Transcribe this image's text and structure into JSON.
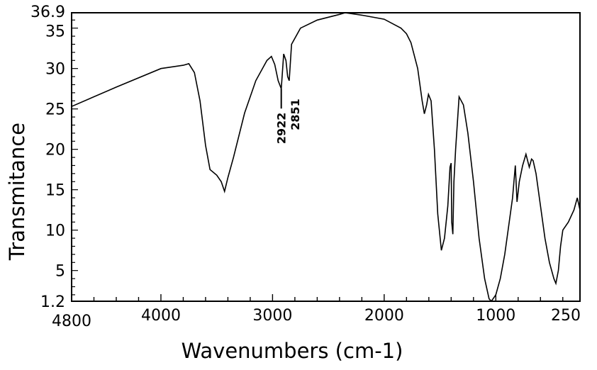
{
  "chart_data": {
    "type": "line",
    "title": "",
    "xlabel": "Wavenumbers (cm-1)",
    "ylabel": "Transmitance",
    "xlim": [
      4800,
      246
    ],
    "ylim": [
      1.2,
      36.9
    ],
    "x_reversed": true,
    "grid": false,
    "x_ticks": [
      4800,
      4000,
      3000,
      2000,
      1000,
      250
    ],
    "x_tick_labels": [
      "4800",
      "4000",
      "3000",
      "2000",
      "1000",
      "250"
    ],
    "y_ticks": [
      1.2,
      5,
      10,
      15,
      20,
      25,
      30,
      35,
      36.9
    ],
    "y_tick_labels": [
      "1.2",
      "5",
      "10",
      "15",
      "20",
      "25",
      "30",
      "35",
      "36.9"
    ],
    "line_color": "#000000",
    "annotations": [
      {
        "text": "2922",
        "x": 2922,
        "y": 27.5
      },
      {
        "text": "2851",
        "x": 2851,
        "y": 28.5
      }
    ],
    "series": [
      {
        "points": [
          [
            4800,
            25.3
          ],
          [
            4400,
            27.7
          ],
          [
            4000,
            30
          ],
          [
            3800,
            30.4
          ],
          [
            3750,
            30.6
          ],
          [
            3700,
            29.5
          ],
          [
            3650,
            26
          ],
          [
            3600,
            20.5
          ],
          [
            3560,
            17.5
          ],
          [
            3500,
            16.8
          ],
          [
            3460,
            16
          ],
          [
            3430,
            14.8
          ],
          [
            3400,
            16.5
          ],
          [
            3350,
            19
          ],
          [
            3250,
            24.5
          ],
          [
            3150,
            28.5
          ],
          [
            3050,
            31
          ],
          [
            3010,
            31.5
          ],
          [
            2980,
            30.5
          ],
          [
            2950,
            28.5
          ],
          [
            2922,
            27.5
          ],
          [
            2900,
            31.8
          ],
          [
            2880,
            31
          ],
          [
            2865,
            29
          ],
          [
            2851,
            28.5
          ],
          [
            2830,
            33
          ],
          [
            2750,
            35
          ],
          [
            2600,
            36
          ],
          [
            2400,
            36.7
          ],
          [
            2350,
            36.9
          ],
          [
            2200,
            36.6
          ],
          [
            2000,
            36.1
          ],
          [
            1850,
            35
          ],
          [
            1800,
            34.3
          ],
          [
            1760,
            33.2
          ],
          [
            1700,
            30
          ],
          [
            1660,
            26
          ],
          [
            1640,
            24.4
          ],
          [
            1620,
            25.5
          ],
          [
            1603,
            26.8
          ],
          [
            1580,
            26
          ],
          [
            1550,
            20
          ],
          [
            1520,
            12
          ],
          [
            1488,
            7.5
          ],
          [
            1460,
            9
          ],
          [
            1430,
            13
          ],
          [
            1410,
            17.8
          ],
          [
            1400,
            18.3
          ],
          [
            1395,
            11
          ],
          [
            1385,
            9.5
          ],
          [
            1375,
            16
          ],
          [
            1360,
            20
          ],
          [
            1329,
            26.5
          ],
          [
            1290,
            25.5
          ],
          [
            1250,
            22
          ],
          [
            1200,
            16
          ],
          [
            1150,
            9
          ],
          [
            1100,
            4
          ],
          [
            1060,
            1.5
          ],
          [
            1040,
            1.2
          ],
          [
            1000,
            2
          ],
          [
            960,
            4
          ],
          [
            920,
            7
          ],
          [
            880,
            11
          ],
          [
            850,
            14
          ],
          [
            825,
            18
          ],
          [
            810,
            13.5
          ],
          [
            790,
            16
          ],
          [
            760,
            18
          ],
          [
            730,
            19.4
          ],
          [
            700,
            17.8
          ],
          [
            680,
            18.8
          ],
          [
            666,
            18.6
          ],
          [
            640,
            17
          ],
          [
            600,
            13
          ],
          [
            560,
            9
          ],
          [
            520,
            6
          ],
          [
            480,
            4
          ],
          [
            462,
            3.4
          ],
          [
            440,
            5
          ],
          [
            420,
            8
          ],
          [
            400,
            10
          ],
          [
            350,
            11
          ],
          [
            300,
            12.5
          ],
          [
            270,
            14
          ],
          [
            246,
            12.5
          ]
        ]
      }
    ]
  }
}
